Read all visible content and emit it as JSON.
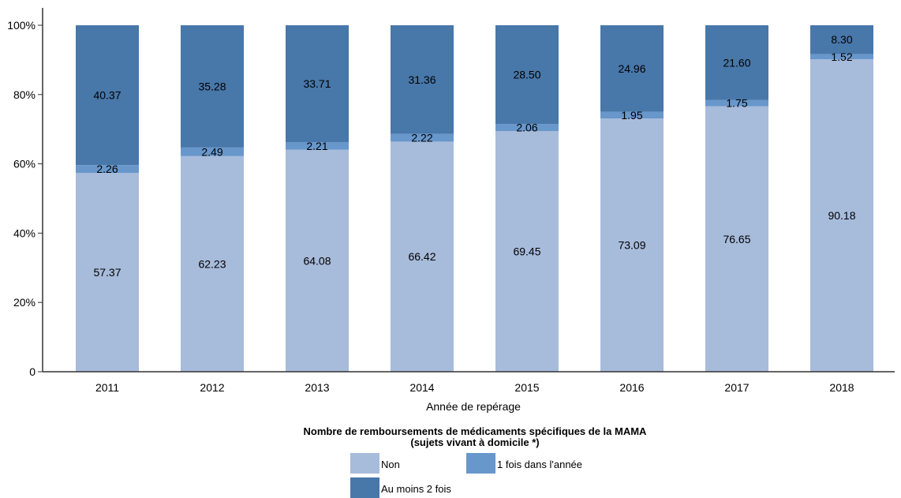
{
  "chart_data": {
    "type": "bar",
    "stacked": true,
    "categories": [
      "2011",
      "2012",
      "2013",
      "2014",
      "2015",
      "2016",
      "2017",
      "2018"
    ],
    "series": [
      {
        "name": "Non",
        "color": "#a7bbdb",
        "values": [
          57.37,
          62.23,
          64.08,
          66.42,
          69.45,
          73.09,
          76.65,
          90.18
        ]
      },
      {
        "name": "1 fois dans l'année",
        "color": "#6897cb",
        "values": [
          2.26,
          2.49,
          2.21,
          2.22,
          2.06,
          1.95,
          1.75,
          1.52
        ]
      },
      {
        "name": "Au moins 2 fois",
        "color": "#4877a9",
        "values": [
          40.37,
          35.28,
          33.71,
          31.36,
          28.5,
          24.96,
          21.6,
          8.3
        ]
      }
    ],
    "data_labels": [
      [
        "57.37",
        "62.23",
        "64.08",
        "66.42",
        "69.45",
        "73.09",
        "76.65",
        "90.18"
      ],
      [
        "2.26",
        "2.49",
        "2.21",
        "2.22",
        "2.06",
        "1.95",
        "1.75",
        "1.52"
      ],
      [
        "40.37",
        "35.28",
        "33.71",
        "31.36",
        "28.50",
        "24.96",
        "21.60",
        "8.30"
      ]
    ],
    "ylim": [
      0,
      100
    ],
    "yticks": [
      0,
      20,
      40,
      60,
      80,
      100
    ],
    "ytick_labels": [
      "0",
      "20%",
      "40%",
      "60%",
      "80%",
      "100%"
    ],
    "xlabel": "Année de repérage",
    "ylabel": "",
    "grid": false,
    "legend": {
      "position": "bottom",
      "title_line1": "Nombre de remboursements de médicaments spécifiques de la MAMA",
      "title_line2": "(sujets vivant à domicile *)"
    }
  }
}
